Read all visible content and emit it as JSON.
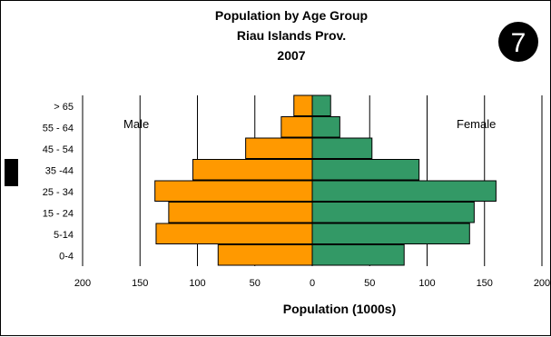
{
  "chart_data": {
    "type": "bar",
    "title": [
      "Population by Age Group",
      "Riau Islands Prov.",
      "2007"
    ],
    "badge": "7",
    "categories": [
      "> 65",
      "55 - 64",
      "45 - 54",
      "35 -44",
      "25 - 34",
      "15 - 24",
      "5-14",
      "0-4"
    ],
    "series": [
      {
        "name": "Male",
        "color": "#ff9900",
        "values": [
          16,
          27,
          58,
          104,
          137,
          125,
          136,
          82
        ]
      },
      {
        "name": "Female",
        "color": "#339966",
        "values": [
          16,
          24,
          52,
          93,
          160,
          141,
          137,
          80
        ]
      }
    ],
    "xlabel": "Population (1000s)",
    "xticks": [
      "200",
      "150",
      "100",
      "50",
      "0",
      "50",
      "100",
      "150",
      "200"
    ],
    "xlim": [
      -200,
      200
    ],
    "grid": true
  }
}
